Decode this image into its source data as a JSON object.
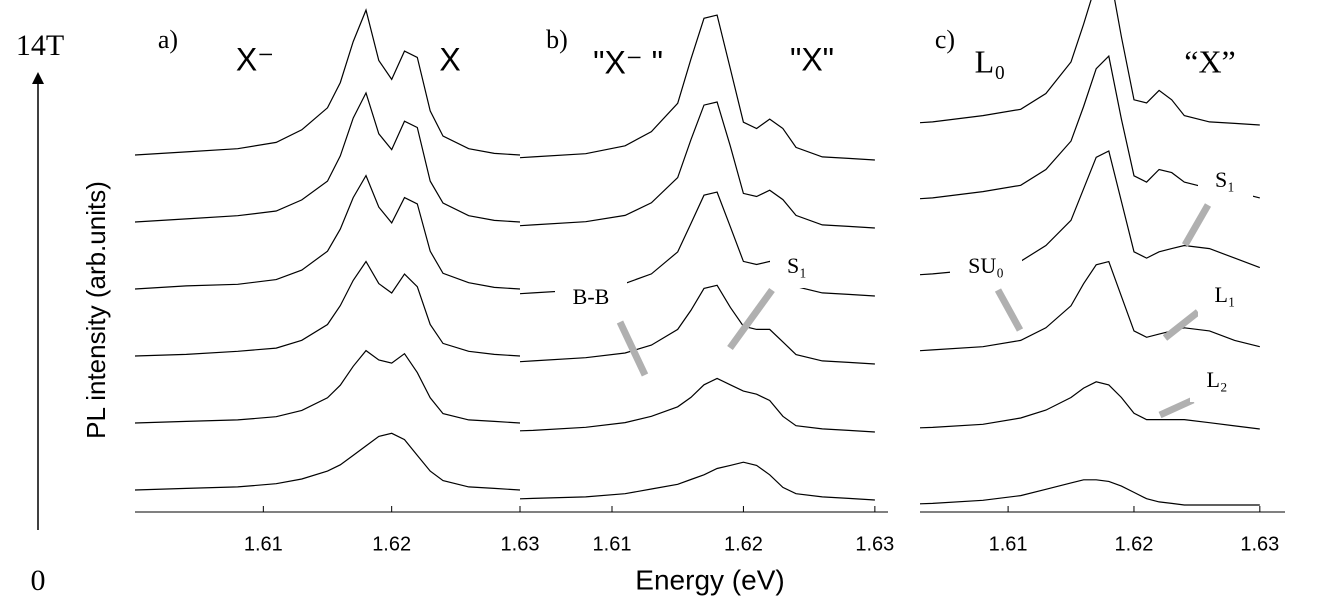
{
  "shared": {
    "x_label": "Energy (eV)",
    "y_label": "PL intensity (arb.units)",
    "y_arrow_top": "14T",
    "y_arrow_bottom": "0"
  },
  "chart_data": [
    {
      "type": "line",
      "label": "a)",
      "annotations": [
        "X⁻",
        "X"
      ],
      "x": [
        1.6,
        1.604,
        1.608,
        1.611,
        1.613,
        1.615,
        1.616,
        1.617,
        1.618,
        1.619,
        1.62,
        1.621,
        1.622,
        1.623,
        1.624,
        1.626,
        1.628,
        1.63
      ],
      "xlim": [
        1.6,
        1.63
      ],
      "ylim": [
        0,
        15
      ],
      "xticks": [
        1.61,
        1.62,
        1.63
      ],
      "series": [
        {
          "color": "#000000",
          "values": [
            0,
            0.05,
            0.1,
            0.2,
            0.35,
            0.6,
            0.8,
            1.1,
            1.4,
            1.7,
            1.8,
            1.6,
            1.1,
            0.6,
            0.3,
            0.1,
            0.05,
            0
          ]
        },
        {
          "color": "#000000",
          "values": [
            0,
            0.05,
            0.1,
            0.2,
            0.4,
            0.8,
            1.2,
            1.8,
            2.3,
            2.0,
            1.9,
            2.2,
            1.6,
            0.8,
            0.3,
            0.1,
            0.05,
            0
          ]
        },
        {
          "color": "#000000",
          "values": [
            0,
            0.05,
            0.15,
            0.25,
            0.5,
            1.0,
            1.6,
            2.4,
            3.0,
            2.3,
            2.0,
            2.6,
            2.2,
            1.0,
            0.4,
            0.15,
            0.05,
            0
          ]
        },
        {
          "color": "#000000",
          "values": [
            0,
            0.1,
            0.15,
            0.3,
            0.6,
            1.2,
            1.9,
            2.9,
            3.6,
            2.6,
            2.1,
            2.9,
            2.7,
            1.2,
            0.5,
            0.2,
            0.05,
            0
          ]
        },
        {
          "color": "#000000",
          "values": [
            0,
            0.1,
            0.2,
            0.35,
            0.7,
            1.3,
            2.1,
            3.3,
            4.1,
            2.8,
            2.3,
            3.2,
            3.0,
            1.3,
            0.6,
            0.2,
            0.05,
            0
          ]
        },
        {
          "color": "#000000",
          "values": [
            0,
            0.1,
            0.2,
            0.4,
            0.8,
            1.5,
            2.3,
            3.6,
            4.6,
            3.0,
            2.4,
            3.3,
            3.1,
            1.4,
            0.6,
            0.2,
            0.05,
            0
          ]
        }
      ]
    },
    {
      "type": "line",
      "label": "b)",
      "annotations": [
        "\"X⁻ \"",
        "\"X\"",
        "B-B",
        "S₁"
      ],
      "x": [
        1.6,
        1.604,
        1.608,
        1.611,
        1.613,
        1.615,
        1.616,
        1.617,
        1.618,
        1.619,
        1.62,
        1.621,
        1.622,
        1.623,
        1.624,
        1.626,
        1.628,
        1.63
      ],
      "xlim": [
        1.603,
        1.631
      ],
      "ylim": [
        0,
        15
      ],
      "xticks": [
        1.61,
        1.62,
        1.63
      ],
      "series": [
        {
          "color": "#000000",
          "values": [
            0,
            0.05,
            0.1,
            0.2,
            0.35,
            0.5,
            0.65,
            0.8,
            1.0,
            1.1,
            1.2,
            1.1,
            0.8,
            0.4,
            0.2,
            0.1,
            0.05,
            0
          ]
        },
        {
          "color": "#000000",
          "values": [
            0,
            0.05,
            0.15,
            0.3,
            0.5,
            0.8,
            1.1,
            1.5,
            1.7,
            1.5,
            1.3,
            1.2,
            1.0,
            0.5,
            0.2,
            0.1,
            0.05,
            0
          ]
        },
        {
          "color": "#000000",
          "values": [
            0,
            0.1,
            0.2,
            0.35,
            0.6,
            1.1,
            1.7,
            2.4,
            2.5,
            1.8,
            1.2,
            1.1,
            1.1,
            0.7,
            0.3,
            0.1,
            0.05,
            0
          ]
        },
        {
          "color": "#000000",
          "values": [
            0,
            0.1,
            0.2,
            0.4,
            0.7,
            1.4,
            2.3,
            3.2,
            3.3,
            2.2,
            1.1,
            1.0,
            1.1,
            0.8,
            0.3,
            0.1,
            0.05,
            0
          ]
        },
        {
          "color": "#000000",
          "values": [
            0,
            0.1,
            0.2,
            0.4,
            0.8,
            1.6,
            2.8,
            3.9,
            4.0,
            2.6,
            1.1,
            1.0,
            1.2,
            0.9,
            0.4,
            0.1,
            0.05,
            0
          ]
        },
        {
          "color": "#000000",
          "values": [
            0,
            0.1,
            0.2,
            0.45,
            0.9,
            1.8,
            3.2,
            4.5,
            4.6,
            2.9,
            1.2,
            1.0,
            1.3,
            1.0,
            0.4,
            0.1,
            0.05,
            0
          ]
        }
      ]
    },
    {
      "type": "line",
      "label": "c)",
      "annotations": [
        "L₀",
        "“X”",
        "SU₀",
        "S₁",
        "L₁",
        "L₂"
      ],
      "x": [
        1.6,
        1.604,
        1.608,
        1.611,
        1.613,
        1.615,
        1.616,
        1.617,
        1.618,
        1.619,
        1.62,
        1.621,
        1.622,
        1.623,
        1.624,
        1.626,
        1.628,
        1.63
      ],
      "xlim": [
        1.603,
        1.632
      ],
      "ylim": [
        0,
        15
      ],
      "xticks": [
        1.61,
        1.62,
        1.63
      ],
      "series": [
        {
          "color": "#000000",
          "values": [
            0,
            0.05,
            0.15,
            0.3,
            0.5,
            0.7,
            0.8,
            0.8,
            0.75,
            0.6,
            0.4,
            0.2,
            0.1,
            0.05,
            0,
            0,
            0,
            0
          ]
        },
        {
          "color": "#000000",
          "values": [
            0,
            0.05,
            0.15,
            0.35,
            0.6,
            1.0,
            1.3,
            1.5,
            1.4,
            1.0,
            0.5,
            0.3,
            0.3,
            0.3,
            0.3,
            0.2,
            0.1,
            0
          ]
        },
        {
          "color": "#000000",
          "values": [
            0,
            0.1,
            0.2,
            0.4,
            0.8,
            1.5,
            2.2,
            2.8,
            2.9,
            1.8,
            0.7,
            0.5,
            0.6,
            0.7,
            0.8,
            0.7,
            0.4,
            0.2
          ]
        },
        {
          "color": "#000000",
          "values": [
            0,
            0.1,
            0.25,
            0.5,
            1.0,
            1.8,
            2.8,
            3.8,
            4.0,
            2.4,
            0.8,
            0.6,
            0.8,
            0.9,
            1.0,
            0.9,
            0.6,
            0.3
          ]
        },
        {
          "color": "#000000",
          "values": [
            0,
            0.1,
            0.3,
            0.5,
            1.0,
            1.9,
            3.0,
            4.2,
            4.6,
            2.6,
            0.8,
            0.6,
            1.0,
            0.9,
            0.6,
            0.4,
            0.3,
            0.1
          ]
        },
        {
          "color": "#000000",
          "values": [
            0,
            0.1,
            0.3,
            0.5,
            1.0,
            2.0,
            3.2,
            4.5,
            5.0,
            2.8,
            0.8,
            0.7,
            1.1,
            0.8,
            0.3,
            0.1,
            0.05,
            0
          ]
        }
      ]
    }
  ]
}
